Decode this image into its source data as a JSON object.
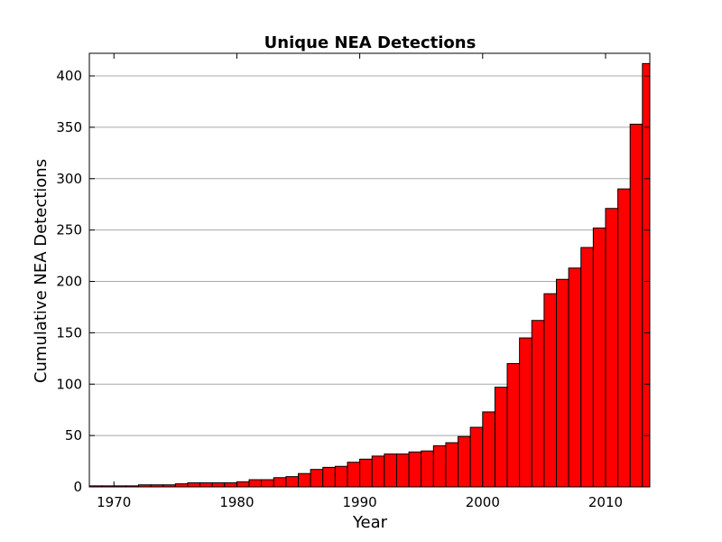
{
  "chart_data": {
    "type": "bar",
    "title": "Unique NEA Detections",
    "xlabel": "Year",
    "ylabel": "Cumulative NEA Detections",
    "bar_color": "#ff0000",
    "edge_color": "#000000",
    "grid_color": "#a8a8a8",
    "xlim": [
      1968,
      2013.6
    ],
    "ylim": [
      0,
      422
    ],
    "grid": "horizontal",
    "xticks": [
      1970,
      1980,
      1990,
      2000,
      2010
    ],
    "xtick_labels": [
      "1970",
      "1980",
      "1990",
      "2000",
      "2010"
    ],
    "yticks": [
      0,
      50,
      100,
      150,
      200,
      250,
      300,
      350,
      400
    ],
    "ytick_labels": [
      "0",
      "50",
      "100",
      "150",
      "200",
      "250",
      "300",
      "350",
      "400"
    ],
    "x": [
      1968,
      1969,
      1970,
      1971,
      1972,
      1973,
      1974,
      1975,
      1976,
      1977,
      1978,
      1979,
      1980,
      1981,
      1982,
      1983,
      1984,
      1985,
      1986,
      1987,
      1988,
      1989,
      1990,
      1991,
      1992,
      1993,
      1994,
      1995,
      1996,
      1997,
      1998,
      1999,
      2000,
      2001,
      2002,
      2003,
      2004,
      2005,
      2006,
      2007,
      2008,
      2009,
      2010,
      2011,
      2012,
      2013
    ],
    "values": [
      1,
      1,
      1,
      1,
      2,
      2,
      2,
      3,
      4,
      4,
      4,
      4,
      5,
      7,
      7,
      9,
      10,
      13,
      17,
      19,
      20,
      24,
      27,
      30,
      32,
      32,
      34,
      35,
      40,
      43,
      49,
      58,
      73,
      97,
      120,
      145,
      162,
      188,
      202,
      213,
      233,
      252,
      271,
      290,
      353,
      412
    ]
  }
}
